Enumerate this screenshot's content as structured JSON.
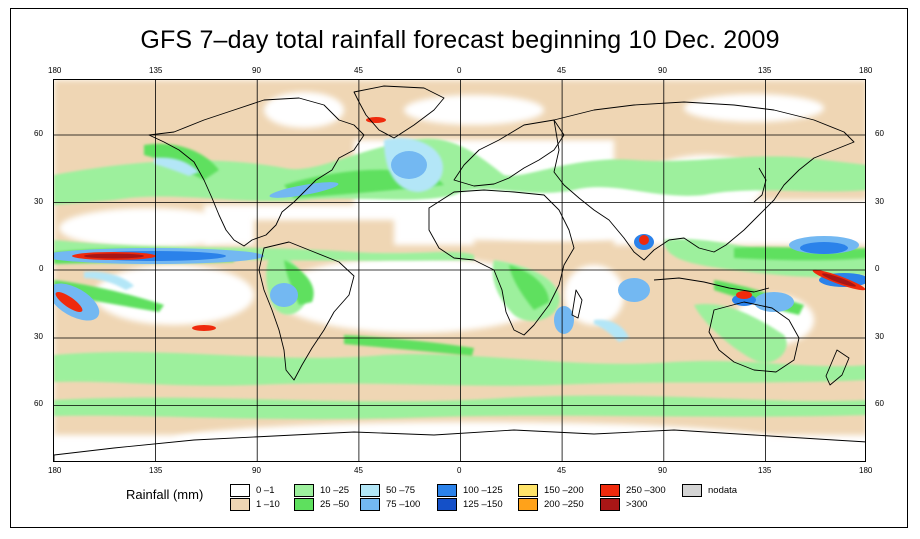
{
  "title": "GFS 7–day total rainfall forecast beginning 10 Dec. 2009",
  "map": {
    "projection": "equirectangular",
    "top_longitude_labels": [
      "180",
      "135",
      "90",
      "45",
      "0",
      "45",
      "90",
      "135",
      "180"
    ],
    "bottom_longitude_labels": [
      "180",
      "135",
      "90",
      "45",
      "0",
      "45",
      "90",
      "135",
      "180"
    ],
    "left_latitude_labels": [
      "60",
      "30",
      "0",
      "30",
      "60"
    ],
    "right_latitude_labels": [
      "60",
      "30",
      "0",
      "30",
      "60"
    ]
  },
  "legend": {
    "title": "Rainfall (mm)",
    "items": [
      {
        "label": "0 –1",
        "color": "#ffffff"
      },
      {
        "label": "1 –10",
        "color": "#efd6b4"
      },
      {
        "label": "10 –25",
        "color": "#9df09d"
      },
      {
        "label": "25 –50",
        "color": "#5ee05e"
      },
      {
        "label": "50 –75",
        "color": "#b3e6f7"
      },
      {
        "label": "75 –100",
        "color": "#73b8f2"
      },
      {
        "label": "100 –125",
        "color": "#2b82ea"
      },
      {
        "label": "125 –150",
        "color": "#1450c8"
      },
      {
        "label": "150 –200",
        "color": "#ffe46a"
      },
      {
        "label": "200 –250",
        "color": "#ffa21a"
      },
      {
        "label": "250 –300",
        "color": "#ef2a0c"
      },
      {
        "label": ">300",
        "color": "#a81616"
      },
      {
        "label": "nodata",
        "color": "#d4d4d4"
      }
    ]
  }
}
